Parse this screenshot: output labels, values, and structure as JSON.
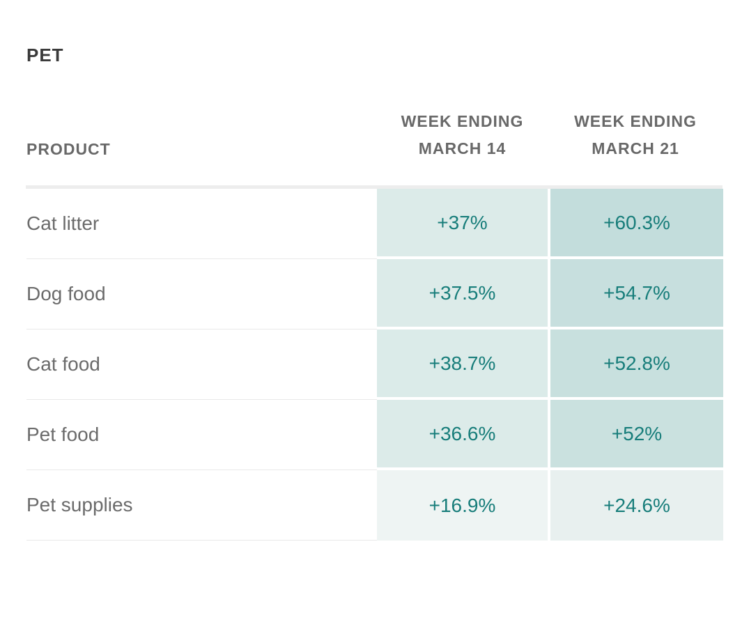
{
  "title": "PET",
  "colors": {
    "value_text": "#177d7a",
    "header_text": "#686868",
    "product_text": "#6b6b6b",
    "title_text": "#3a3a3a",
    "separator": "#ededed",
    "row_line": "#e8e8e8"
  },
  "table": {
    "headers": {
      "product": "PRODUCT",
      "col1_line1": "WEEK ENDING",
      "col1_line2": "MARCH 14",
      "col2_line1": "WEEK ENDING",
      "col2_line2": "MARCH 21"
    },
    "rows": [
      {
        "product": "Cat litter",
        "v1": "+37%",
        "v2": "+60.3%",
        "bg1": "#dcebe9",
        "bg2": "#c3dddc"
      },
      {
        "product": "Dog food",
        "v1": "+37.5%",
        "v2": "+54.7%",
        "bg1": "#dcebe9",
        "bg2": "#c7dfde"
      },
      {
        "product": "Cat food",
        "v1": "+38.7%",
        "v2": "+52.8%",
        "bg1": "#dbebe9",
        "bg2": "#c8e0de"
      },
      {
        "product": "Pet food",
        "v1": "+36.6%",
        "v2": "+52%",
        "bg1": "#dcebe9",
        "bg2": "#cae1df"
      },
      {
        "product": "Pet supplies",
        "v1": "+16.9%",
        "v2": "+24.6%",
        "bg1": "#eef4f3",
        "bg2": "#e8f0ef"
      }
    ]
  },
  "chart_data": {
    "type": "table",
    "title": "PET",
    "columns": [
      "PRODUCT",
      "WEEK ENDING MARCH 14",
      "WEEK ENDING MARCH 21"
    ],
    "categories": [
      "Cat litter",
      "Dog food",
      "Cat food",
      "Pet food",
      "Pet supplies"
    ],
    "series": [
      {
        "name": "WEEK ENDING MARCH 14",
        "values": [
          37,
          37.5,
          38.7,
          36.6,
          16.9
        ],
        "unit": "%",
        "display": [
          "+37%",
          "+37.5%",
          "+38.7%",
          "+36.6%",
          "+16.9%"
        ]
      },
      {
        "name": "WEEK ENDING MARCH 21",
        "values": [
          60.3,
          54.7,
          52.8,
          52,
          24.6
        ],
        "unit": "%",
        "display": [
          "+60.3%",
          "+54.7%",
          "+52.8%",
          "+52%",
          "+24.6%"
        ]
      }
    ],
    "notes": "Heatmap-shaded cells: darker teal = higher growth value"
  }
}
